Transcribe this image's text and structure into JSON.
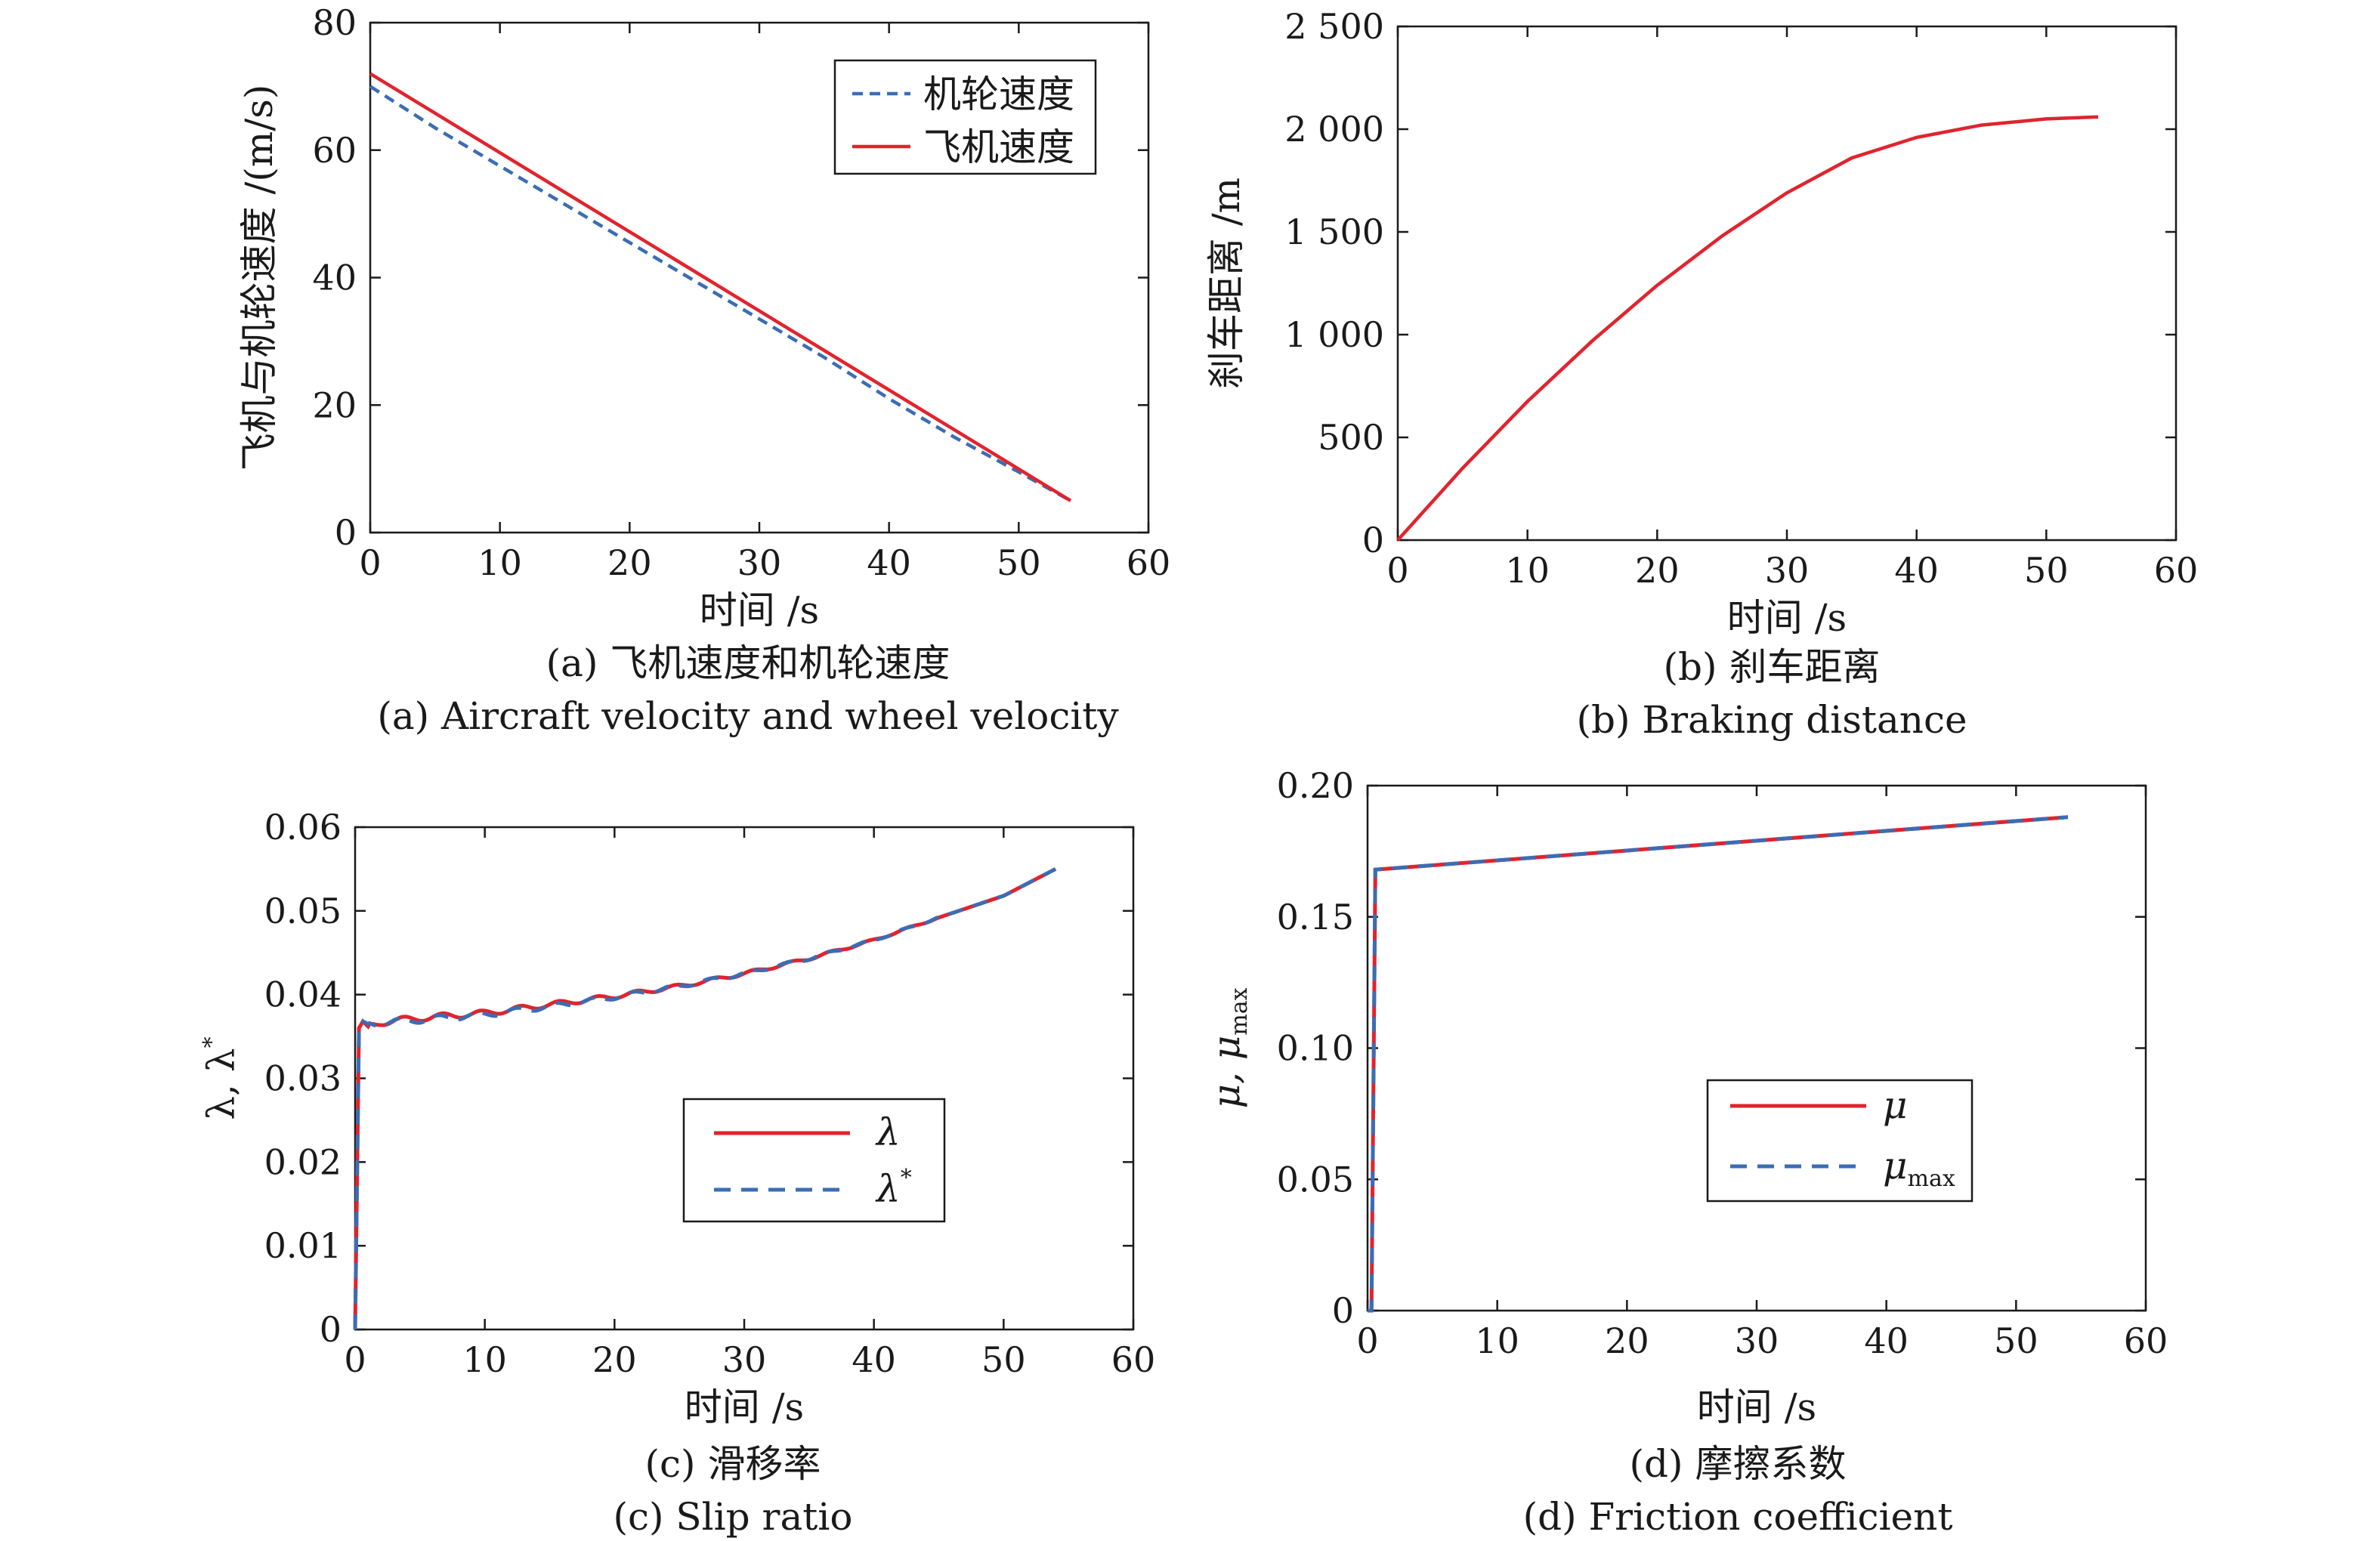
{
  "colors": {
    "red": "#e0242e",
    "blue": "#3b6db4",
    "axis": "#1a1a1a"
  },
  "chart_data": [
    {
      "type": "line",
      "caption_cn": "(a) 飞机速度和机轮速度",
      "caption_en": "(a) Aircraft velocity and wheel velocity",
      "xlabel": "时间 /s",
      "ylabel": "飞机与机轮速度 /(m/s)",
      "xlim": [
        0,
        60
      ],
      "ylim": [
        0,
        80
      ],
      "xticks": [
        0,
        10,
        20,
        30,
        40,
        50,
        60
      ],
      "yticks": [
        0,
        20,
        40,
        60,
        80
      ],
      "xtick_labels": [
        "0",
        "10",
        "20",
        "30",
        "40",
        "50",
        "60"
      ],
      "ytick_labels": [
        "0",
        "20",
        "40",
        "60",
        "80"
      ],
      "legend_position": "top-right",
      "grid": false,
      "series": [
        {
          "name": "机轮速度",
          "style": "dashed",
          "color": "#3b6db4",
          "x": [
            0,
            5,
            10,
            15,
            20,
            25,
            30,
            35,
            40,
            45,
            50,
            54
          ],
          "y": [
            70,
            63.5,
            57.5,
            51.5,
            45.5,
            39.5,
            33.5,
            27.5,
            21,
            15,
            9.5,
            5
          ]
        },
        {
          "name": "飞机速度",
          "style": "solid",
          "color": "#e0242e",
          "x": [
            0,
            54
          ],
          "y": [
            72,
            5
          ]
        }
      ]
    },
    {
      "type": "line",
      "caption_cn": "(b) 刹车距离",
      "caption_en": "(b) Braking distance",
      "xlabel": "时间 /s",
      "ylabel": "刹车距离 /m",
      "xlim": [
        0,
        60
      ],
      "ylim": [
        0,
        2500
      ],
      "xticks": [
        0,
        10,
        20,
        30,
        40,
        50,
        60
      ],
      "yticks": [
        0,
        500,
        1000,
        1500,
        2000,
        2500
      ],
      "xtick_labels": [
        "0",
        "10",
        "20",
        "30",
        "40",
        "50",
        "60"
      ],
      "ytick_labels": [
        "0",
        "500",
        "1 000",
        "1 500",
        "2 000",
        "2 500"
      ],
      "grid": false,
      "series": [
        {
          "style": "solid",
          "color": "#e0242e",
          "x": [
            0,
            5,
            10,
            15,
            20,
            25,
            30,
            35,
            40,
            45,
            50,
            54
          ],
          "y": [
            0,
            350,
            675,
            970,
            1240,
            1480,
            1690,
            1860,
            1960,
            2020,
            2050,
            2060
          ]
        }
      ]
    },
    {
      "type": "line",
      "caption_cn": "(c) 滑移率",
      "caption_en": "(c) Slip ratio",
      "xlabel": "时间 /s",
      "ylabel": "λ, λ*",
      "xlim": [
        0,
        60
      ],
      "ylim": [
        0,
        0.06
      ],
      "xticks": [
        0,
        10,
        20,
        30,
        40,
        50,
        60
      ],
      "yticks": [
        0,
        0.01,
        0.02,
        0.03,
        0.04,
        0.05,
        0.06
      ],
      "xtick_labels": [
        "0",
        "10",
        "20",
        "30",
        "40",
        "50",
        "60"
      ],
      "ytick_labels": [
        "0",
        "0.01",
        "0.02",
        "0.03",
        "0.04",
        "0.05",
        "0.06"
      ],
      "legend_position": "center-right",
      "grid": false,
      "series": [
        {
          "name": "λ",
          "style": "solid",
          "color": "#e0242e",
          "x": [
            0,
            0.3,
            0.6,
            1,
            2,
            5,
            10,
            15,
            20,
            25,
            30,
            35,
            40,
            45,
            50,
            54
          ],
          "y": [
            0,
            0.036,
            0.0368,
            0.0362,
            0.0367,
            0.0372,
            0.0378,
            0.0388,
            0.0398,
            0.041,
            0.0425,
            0.0443,
            0.0465,
            0.0492,
            0.0518,
            0.055
          ]
        },
        {
          "name": "λ*",
          "style": "dashed",
          "color": "#3b6db4",
          "x": [
            0,
            0.3,
            0.6,
            1,
            2,
            5,
            10,
            15,
            20,
            25,
            30,
            35,
            40,
            45,
            50,
            54
          ],
          "y": [
            0,
            0.036,
            0.0368,
            0.0365,
            0.0366,
            0.037,
            0.0376,
            0.0386,
            0.0397,
            0.041,
            0.0425,
            0.0443,
            0.0465,
            0.0492,
            0.0518,
            0.055
          ]
        }
      ],
      "legend": [
        {
          "base": "λ",
          "sup": "",
          "style": "solid",
          "color": "#e0242e"
        },
        {
          "base": "λ",
          "sup": "*",
          "style": "dashed",
          "color": "#3b6db4"
        }
      ]
    },
    {
      "type": "line",
      "caption_cn": "(d) 摩擦系数",
      "caption_en": "(d) Friction coefficient",
      "xlabel": "时间 /s",
      "ylabel": "μ, μmax",
      "xlim": [
        0,
        60
      ],
      "ylim": [
        0,
        0.2
      ],
      "xticks": [
        0,
        10,
        20,
        30,
        40,
        50,
        60
      ],
      "yticks": [
        0,
        0.05,
        0.1,
        0.15,
        0.2
      ],
      "xtick_labels": [
        "0",
        "10",
        "20",
        "30",
        "40",
        "50",
        "60"
      ],
      "ytick_labels": [
        "0",
        "0.05",
        "0.10",
        "0.15",
        "0.20"
      ],
      "legend_position": "center",
      "grid": false,
      "series": [
        {
          "name": "μ",
          "style": "solid",
          "color": "#e0242e",
          "x": [
            0,
            0.3,
            0.6,
            54
          ],
          "y": [
            0,
            0.0,
            0.168,
            0.188
          ]
        },
        {
          "name": "μmax",
          "style": "dashed",
          "color": "#3b6db4",
          "x": [
            0,
            0.3,
            0.6,
            54
          ],
          "y": [
            0,
            0.0,
            0.168,
            0.188
          ]
        }
      ],
      "legend": [
        {
          "base": "μ",
          "sup": "",
          "sub": "",
          "style": "solid",
          "color": "#e0242e"
        },
        {
          "base": "μ",
          "sup": "",
          "sub": "max",
          "style": "dashed",
          "color": "#3b6db4"
        }
      ]
    }
  ]
}
